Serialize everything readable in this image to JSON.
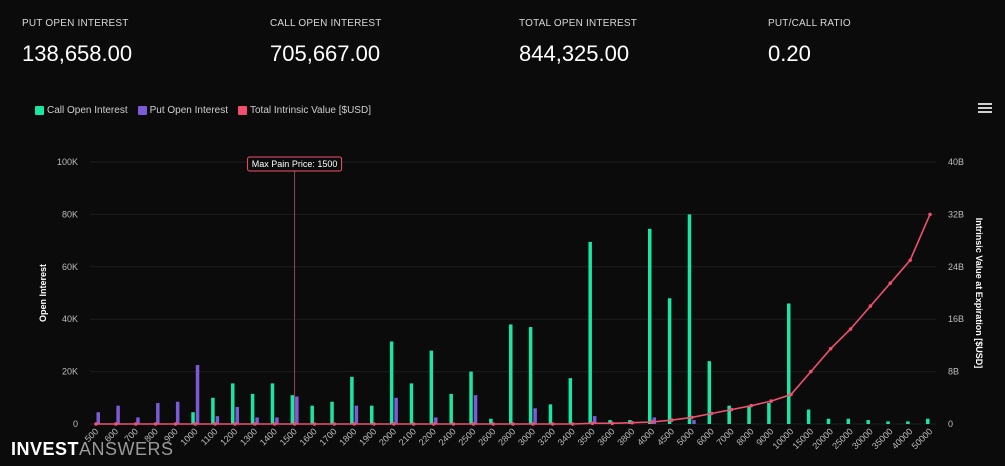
{
  "stats": [
    {
      "label": "PUT OPEN INTEREST",
      "value": "138,658.00"
    },
    {
      "label": "CALL OPEN INTEREST",
      "value": "705,667.00"
    },
    {
      "label": "TOTAL OPEN INTEREST",
      "value": "844,325.00"
    },
    {
      "label": "PUT/CALL RATIO",
      "value": "0.20"
    }
  ],
  "legend": [
    {
      "label": "Call Open Interest",
      "color": "#19e6a3"
    },
    {
      "label": "Put Open Interest",
      "color": "#7b5cd6"
    },
    {
      "label": "Total Intrinsic Value [$USD]",
      "color": "#f0506e"
    }
  ],
  "watermark": {
    "part1": "INVEST",
    "part2": "ANSWERS"
  },
  "menu_icon": "hamburger-menu-icon",
  "chart_data": {
    "type": "bar",
    "ylabel": "Open Interest",
    "y2label": "Intrinsic Value at Expiration [$USD]",
    "ylim": [
      0,
      100000
    ],
    "y2lim": [
      0,
      40
    ],
    "yticks": [
      "0",
      "20K",
      "40K",
      "60K",
      "80K",
      "100K"
    ],
    "y2ticks": [
      "0",
      "8B",
      "16B",
      "24B",
      "32B",
      "40B"
    ],
    "annotation": {
      "label": "Max Pain Price: 1500",
      "category": "1500"
    },
    "categories": [
      "500",
      "600",
      "700",
      "800",
      "900",
      "1000",
      "1100",
      "1200",
      "1300",
      "1400",
      "1500",
      "1600",
      "1700",
      "1800",
      "1900",
      "2000",
      "2100",
      "2200",
      "2400",
      "2500",
      "2600",
      "2800",
      "3000",
      "3200",
      "3400",
      "3500",
      "3600",
      "3800",
      "4000",
      "4500",
      "5000",
      "6000",
      "7000",
      "8000",
      "9000",
      "10000",
      "15000",
      "20000",
      "25000",
      "30000",
      "35000",
      "40000",
      "50000"
    ],
    "series": [
      {
        "name": "Call Open Interest",
        "color": "#19e6a3",
        "values": [
          0,
          0,
          0,
          0,
          0,
          4500,
          10000,
          15500,
          11500,
          15500,
          11000,
          7000,
          8500,
          18000,
          7000,
          31500,
          15500,
          28000,
          11500,
          20000,
          2000,
          38000,
          37000,
          7500,
          17500,
          69500,
          1500,
          1500,
          74500,
          48000,
          80000,
          24000,
          7000,
          7000,
          8000,
          46000,
          5500,
          2000,
          2000,
          1500,
          1000,
          1000,
          2000
        ]
      },
      {
        "name": "Put Open Interest",
        "color": "#7b5cd6",
        "values": [
          4500,
          7000,
          2500,
          8000,
          8500,
          22500,
          3000,
          6500,
          2500,
          2500,
          10500,
          0,
          0,
          7000,
          0,
          10000,
          0,
          2500,
          0,
          11000,
          0,
          0,
          6000,
          0,
          0,
          3000,
          0,
          0,
          2500,
          0,
          1500,
          0,
          0,
          0,
          0,
          0,
          0,
          0,
          0,
          0,
          0,
          0,
          0
        ]
      },
      {
        "name": "Total Intrinsic Value [$USD]",
        "color": "#f0506e",
        "values": [
          0,
          0,
          0,
          0,
          0,
          0,
          0,
          0,
          0,
          0,
          0,
          0,
          0,
          0,
          0,
          0,
          0,
          0,
          0,
          0,
          0,
          0,
          0,
          0,
          0,
          0.1,
          0.1,
          0.2,
          0.3,
          0.6,
          1.0,
          1.6,
          2.2,
          2.8,
          3.5,
          4.5,
          8.0,
          11.5,
          14.5,
          18.0,
          21.5,
          25.0,
          32.0
        ]
      }
    ]
  }
}
